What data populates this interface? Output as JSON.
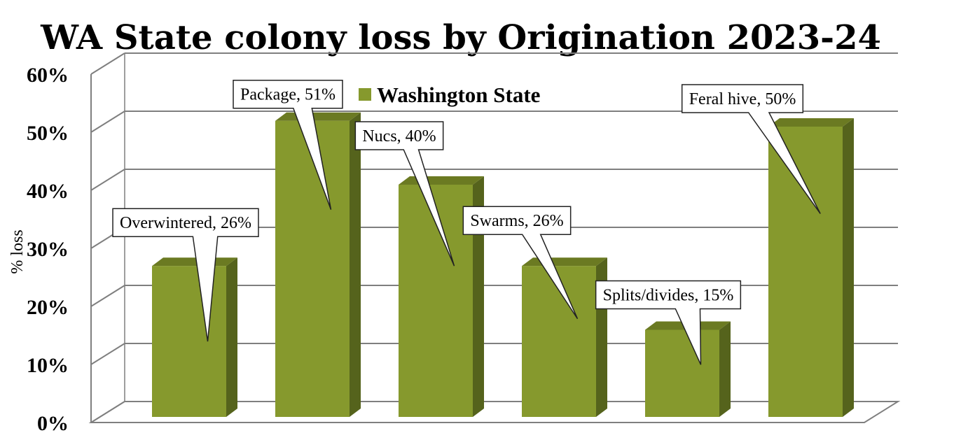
{
  "chart_data": {
    "type": "bar",
    "title": "WA State colony loss by Origination 2023-24",
    "ylabel": "% loss",
    "xlabel": "",
    "ylim": [
      0,
      60
    ],
    "yticks": [
      "0%",
      "10%",
      "20%",
      "30%",
      "40%",
      "50%",
      "60%"
    ],
    "categories": [
      "Overwintered",
      "Package",
      "Nucs",
      "Swarms",
      "Splits/divides",
      "Feral hive"
    ],
    "series": [
      {
        "name": "Washington State",
        "values": [
          26,
          51,
          40,
          26,
          15,
          50
        ],
        "color": "#86992d"
      }
    ],
    "data_labels": [
      "Overwintered, 26%",
      "Package, 51%",
      "Nucs, 40%",
      "Swarms, 26%",
      "Splits/divides, 15%",
      "Feral hive, 50%"
    ],
    "legend": "top-center",
    "grid": true,
    "style": "3d-columns"
  },
  "colors": {
    "bar_front": "#86992d",
    "bar_side": "#55631c",
    "bar_top": "#6b7a22",
    "grid": "#7f7f7f"
  }
}
